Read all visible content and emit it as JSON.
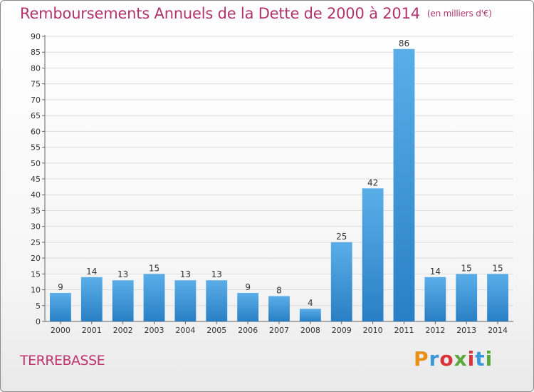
{
  "title": "Remboursements Annuels de la Dette de 2000 à 2014",
  "unit": "(en milliers d'€)",
  "commune": "TERREBASSE",
  "logo": "Proxiti",
  "colors": {
    "title": "#b0346c",
    "bar_top": "#5aaee8",
    "bar_bottom": "#2a7fc4",
    "grid": "#dcdcdc",
    "logo": [
      "#e8901a",
      "#3b98d8",
      "#d8353b",
      "#5aa83c",
      "#d8353b",
      "#3b98d8",
      "#5aa83c"
    ]
  },
  "chart_data": {
    "type": "bar",
    "title": "Remboursements Annuels de la Dette de 2000 à 2014",
    "subtitle": "(en milliers d'€)",
    "categories": [
      "2000",
      "2001",
      "2002",
      "2003",
      "2004",
      "2005",
      "2006",
      "2007",
      "2008",
      "2009",
      "2010",
      "2011",
      "2012",
      "2013",
      "2014"
    ],
    "values": [
      9,
      14,
      13,
      15,
      13,
      13,
      9,
      8,
      4,
      25,
      42,
      86,
      14,
      15,
      15
    ],
    "ylim": [
      0,
      90
    ],
    "yticks": [
      0,
      5,
      10,
      15,
      20,
      25,
      30,
      35,
      40,
      45,
      50,
      55,
      60,
      65,
      70,
      75,
      80,
      85,
      90
    ],
    "grid": true,
    "data_labels": true
  }
}
